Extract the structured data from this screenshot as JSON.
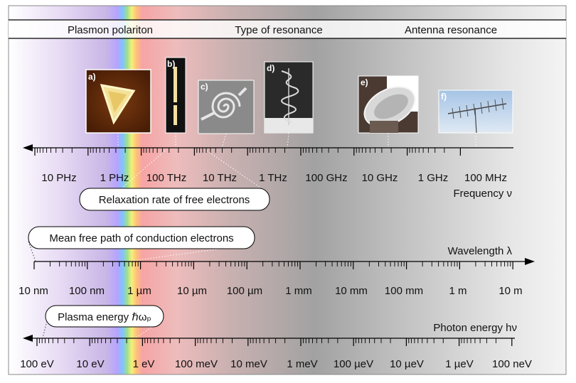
{
  "resonance_bar": {
    "left": "Plasmon polariton",
    "center": "Type of resonance",
    "right": "Antenna resonance"
  },
  "panels": [
    {
      "label": "a)",
      "icon": "nanotriangle-image"
    },
    {
      "label": "b)",
      "icon": "nanorod-image"
    },
    {
      "label": "c)",
      "icon": "spiral-antenna-image"
    },
    {
      "label": "d)",
      "icon": "helical-antenna-image"
    },
    {
      "label": "e)",
      "icon": "satellite-dish-image"
    },
    {
      "label": "f)",
      "icon": "yagi-antenna-image"
    }
  ],
  "frequency_axis": {
    "title": "Frequency ν",
    "direction": "increasing-left",
    "labels": [
      "10 PHz",
      "1 PHz",
      "100 THz",
      "10 THz",
      "1 THz",
      "100 GHz",
      "10 GHz",
      "1 GHz",
      "100 MHz"
    ]
  },
  "wavelength_axis": {
    "title": "Wavelength λ",
    "direction": "increasing-right",
    "labels": [
      "10 nm",
      "100 nm",
      "1 µm",
      "10 µm",
      "100 µm",
      "1 mm",
      "10 mm",
      "100 mm",
      "1 m",
      "10 m"
    ]
  },
  "energy_axis": {
    "title": "Photon energy hν",
    "direction": "increasing-left",
    "labels": [
      "100 eV",
      "10 eV",
      "1 eV",
      "100 meV",
      "10 meV",
      "1 meV",
      "100 µeV",
      "10 µeV",
      "1 µeV",
      "100 neV"
    ]
  },
  "callouts": {
    "relaxation": "Relaxation rate of free electrons",
    "mean_free_path": "Mean free path of conduction electrons",
    "plasma_energy": "Plasma energy ℏωₚ"
  },
  "colors": {
    "uv": "#c9b6e6",
    "infrared": "#f2a8a8",
    "gray_mid": "#a0a0a0",
    "frame": "#888888"
  }
}
